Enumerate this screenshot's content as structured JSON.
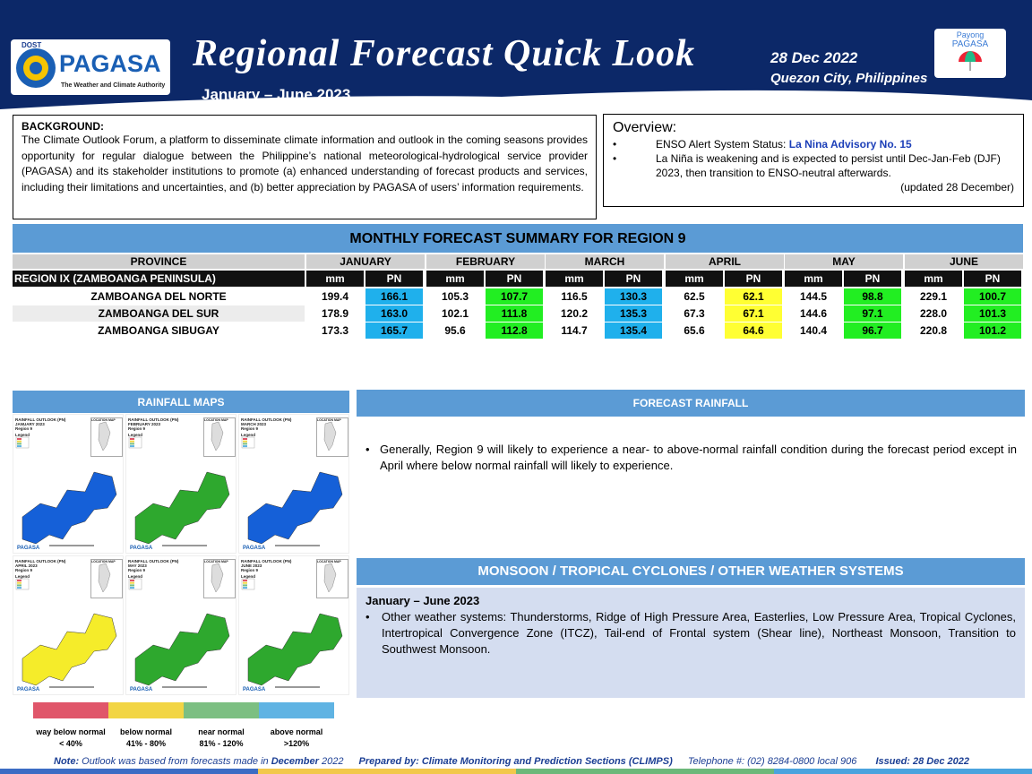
{
  "header": {
    "logo_top": "DOST",
    "logo": "PAGASA",
    "logo_tagline": "The Weather and Climate Authority",
    "title": "Regional Forecast Quick Look",
    "period": "January – June 2023",
    "date": "28 Dec 2022",
    "location": "Quezon City, Philippines",
    "badge_top": "Payong",
    "badge": "PAGASA"
  },
  "background": {
    "heading": "BACKGROUND:",
    "text": "The Climate Outlook Forum, a platform to disseminate climate information and outlook in the coming seasons provides opportunity for regular dialogue between the Philippine’s national meteorological-hydrological service provider (PAGASA) and its stakeholder institutions to promote (a) enhanced understanding of forecast products and services, including their limitations and uncertainties, and (b) better appreciation by PAGASA of users’ information requirements."
  },
  "overview": {
    "heading": "Overview:",
    "enso_label": "ENSO Alert System Status:",
    "enso_link": "La Nina Advisory No. 15",
    "item2": "La Niña is weakening and is expected to persist until Dec-Jan-Feb (DJF) 2023,  then transition to ENSO-neutral afterwards.",
    "updated": "(updated 28 December)"
  },
  "table": {
    "title": "MONTHLY FORECAST SUMMARY FOR REGION 9",
    "province_header": "PROVINCE",
    "months": [
      "JANUARY",
      "FEBRUARY",
      "MARCH",
      "APRIL",
      "MAY",
      "JUNE"
    ],
    "sub": [
      "mm",
      "PN"
    ],
    "region": "REGION IX (ZAMBOANGA PENINSULA)",
    "rows": [
      {
        "province": "ZAMBOANGA DEL NORTE",
        "values": [
          "199.4",
          "166.1",
          "105.3",
          "107.7",
          "116.5",
          "130.3",
          "62.5",
          "62.1",
          "144.5",
          "98.8",
          "229.1",
          "100.7"
        ]
      },
      {
        "province": "ZAMBOANGA DEL SUR",
        "values": [
          "178.9",
          "163.0",
          "102.1",
          "111.8",
          "120.2",
          "135.3",
          "67.3",
          "67.1",
          "144.6",
          "97.1",
          "228.0",
          "101.3"
        ]
      },
      {
        "province": "ZAMBOANGA SIBUGAY",
        "values": [
          "173.3",
          "165.7",
          "95.6",
          "112.8",
          "114.7",
          "135.4",
          "65.6",
          "64.6",
          "140.4",
          "96.7",
          "220.8",
          "101.2"
        ]
      }
    ],
    "pn_colors": [
      "#1fb0ec",
      "#22ee22",
      "#1fb0ec",
      "#ffff33",
      "#22ee22",
      "#22ee22"
    ]
  },
  "maps": {
    "heading": "RAINFALL MAPS",
    "title": "RAINFALL OUTLOOK (PN)",
    "region": "Region 9",
    "legend": "Legend",
    "location": "LOCATION MAP",
    "items": [
      {
        "month": "JANUARY 2023",
        "color": "#1560d8"
      },
      {
        "month": "FEBRUARY 2023",
        "color": "#2ea82e"
      },
      {
        "month": "MARCH 2023",
        "color": "#1560d8"
      },
      {
        "month": "APRIL 2023",
        "color": "#f5ec2a"
      },
      {
        "month": "MAY 2023",
        "color": "#2ea82e"
      },
      {
        "month": "JUNE 2023",
        "color": "#2ea82e"
      }
    ],
    "scale": [
      {
        "name": "way below normal",
        "range": "< 40%",
        "color": "#e0566a"
      },
      {
        "name": "below normal",
        "range": "41% -  80%",
        "color": "#f2d544"
      },
      {
        "name": "near normal",
        "range": "81% - 120%",
        "color": "#7cbf82"
      },
      {
        "name": "above normal",
        "range": ">120%",
        "color": "#5fb3e3"
      }
    ]
  },
  "forecast": {
    "heading": "FORECAST RAINFALL",
    "text": "Generally, Region 9 will likely to experience a near- to above-normal rainfall condition during the forecast period except in April where below normal rainfall will likely to experience."
  },
  "monsoon": {
    "heading": "MONSOON / TROPICAL CYCLONES / OTHER WEATHER SYSTEMS",
    "period": "January – June 2023",
    "text": "Other weather systems: Thunderstorms,  Ridge of High Pressure Area,  Easterlies, Low Pressure Area, Tropical Cyclones, Intertropical Convergence Zone (ITCZ), Tail-end of Frontal system (Shear line), Northeast Monsoon, Transition to Southwest Monsoon."
  },
  "footer": {
    "note_label": "Note:",
    "note_text": "Outlook was based from forecasts made in",
    "note_month": "December",
    "note_year": "2022",
    "prepared": "Prepared by: Climate Monitoring and Prediction Sections (CLIMPS)",
    "telephone": "Telephone #: (02) 8284-0800 local 906",
    "issued": "Issued: 28 Dec 2022"
  }
}
